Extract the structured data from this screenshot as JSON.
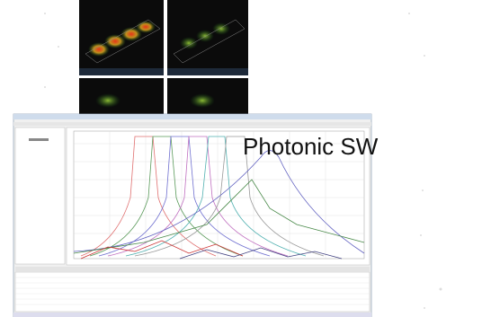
{
  "caption": "Photonic SW"
}
